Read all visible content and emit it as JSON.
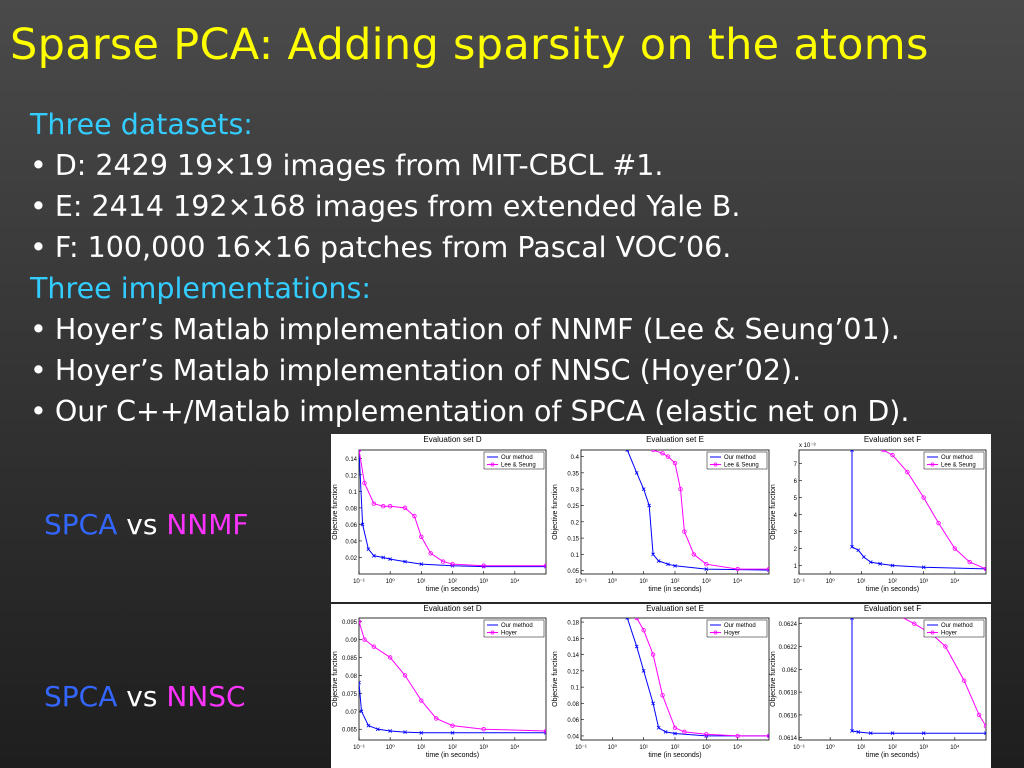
{
  "title": "Sparse PCA: Adding sparsity on the atoms",
  "sections": [
    {
      "heading": "Three datasets:",
      "items": [
        "D: 2429 19×19 images from MIT-CBCL #1.",
        "E: 2414 192×168 images from extended Yale B.",
        "F: 100,000 16×16 patches from Pascal VOC’06."
      ]
    },
    {
      "heading": "Three implementations:",
      "items": [
        "Hoyer’s Matlab implementation of NNMF (Lee & Seung’01).",
        "Hoyer’s Matlab implementation of NNSC (Hoyer’02).",
        "Our C++/Matlab implementation of SPCA (elastic net on D)."
      ]
    }
  ],
  "bullet": "•",
  "comparisons": [
    {
      "a": "SPCA",
      "vs": "vs",
      "b": "NNMF"
    },
    {
      "a": "SPCA",
      "vs": "vs",
      "b": "NNSC"
    }
  ],
  "colors": {
    "title": "#ffff00",
    "heading": "#33ccff",
    "spca": "#3366ff",
    "other": "#ff33ff",
    "series_ours": "#0000ff",
    "series_other": "#ff00ff"
  },
  "chart_data": [
    {
      "type": "line",
      "title": "Evaluation set D",
      "xlabel": "time (in seconds)",
      "ylabel": "Objective function",
      "xscale": "log",
      "xlim": [
        0.1,
        100000
      ],
      "ylim": [
        0,
        0.15
      ],
      "yticks": [
        "0.02",
        "0.04",
        "0.06",
        "0.08",
        "0.1",
        "0.12",
        "0.14"
      ],
      "ytick_values": [
        0.02,
        0.04,
        0.06,
        0.08,
        0.1,
        0.12,
        0.14
      ],
      "xticks": [
        "10⁻¹",
        "10⁰",
        "10¹",
        "10²",
        "10³",
        "10⁴"
      ],
      "legend": "top-right",
      "series": [
        {
          "name": "Our method",
          "x": [
            0.1,
            0.13,
            0.2,
            0.3,
            0.6,
            1,
            3,
            10,
            100,
            1000,
            100000
          ],
          "y": [
            0.15,
            0.06,
            0.03,
            0.022,
            0.02,
            0.018,
            0.015,
            0.012,
            0.01,
            0.009,
            0.009
          ]
        },
        {
          "name": "Lee & Seung",
          "x": [
            0.1,
            0.15,
            0.3,
            0.6,
            1,
            3,
            6,
            10,
            20,
            50,
            100,
            1000,
            100000
          ],
          "y": [
            0.15,
            0.11,
            0.085,
            0.082,
            0.082,
            0.08,
            0.07,
            0.045,
            0.025,
            0.015,
            0.012,
            0.01,
            0.01
          ]
        }
      ]
    },
    {
      "type": "line",
      "title": "Evaluation set E",
      "xlabel": "time (in seconds)",
      "ylabel": "Objective function",
      "xscale": "log",
      "xlim": [
        0.1,
        100000
      ],
      "ylim": [
        0.04,
        0.42
      ],
      "yticks": [
        "0.05",
        "0.1",
        "0.15",
        "0.2",
        "0.25",
        "0.3",
        "0.35",
        "0.4"
      ],
      "ytick_values": [
        0.05,
        0.1,
        0.15,
        0.2,
        0.25,
        0.3,
        0.35,
        0.4
      ],
      "xticks": [
        "10⁻¹",
        "10⁰",
        "10¹",
        "10²",
        "10³",
        "10⁴"
      ],
      "legend": "top-right",
      "series": [
        {
          "name": "Our method",
          "x": [
            3,
            6,
            10,
            15,
            20,
            30,
            60,
            100,
            1000,
            100000
          ],
          "y": [
            0.42,
            0.35,
            0.3,
            0.25,
            0.1,
            0.08,
            0.07,
            0.065,
            0.055,
            0.052
          ]
        },
        {
          "name": "Lee & Seung",
          "x": [
            20,
            40,
            60,
            100,
            150,
            200,
            400,
            1000,
            10000,
            100000
          ],
          "y": [
            0.42,
            0.41,
            0.4,
            0.38,
            0.3,
            0.17,
            0.1,
            0.07,
            0.055,
            0.055
          ]
        }
      ]
    },
    {
      "type": "line",
      "title": "Evaluation set F",
      "xlabel": "time (in seconds)",
      "ylabel": "Objective function",
      "exponent": "x 10⁻³",
      "xscale": "log",
      "xlim": [
        0.1,
        100000
      ],
      "ylim": [
        0.0005,
        0.0078
      ],
      "yticks": [
        "1",
        "2",
        "3",
        "4",
        "5",
        "6",
        "7"
      ],
      "ytick_values": [
        0.001,
        0.002,
        0.003,
        0.004,
        0.005,
        0.006,
        0.007
      ],
      "xticks": [
        "10⁻¹",
        "10⁰",
        "10¹",
        "10²",
        "10³",
        "10⁴"
      ],
      "legend": "top-right",
      "series": [
        {
          "name": "Our method",
          "x": [
            5,
            5,
            8,
            12,
            20,
            40,
            100,
            1000,
            100000
          ],
          "y": [
            0.0078,
            0.0021,
            0.0019,
            0.0015,
            0.0012,
            0.0011,
            0.001,
            0.0009,
            0.0008
          ]
        },
        {
          "name": "Lee & Seung",
          "x": [
            50,
            100,
            300,
            1000,
            3000,
            10000,
            30000,
            100000
          ],
          "y": [
            0.0078,
            0.0075,
            0.0065,
            0.005,
            0.0035,
            0.002,
            0.0012,
            0.0008
          ]
        }
      ]
    },
    {
      "type": "line",
      "title": "Evaluation set D",
      "xlabel": "time (in seconds)",
      "ylabel": "Objective function",
      "xscale": "log",
      "xlim": [
        0.1,
        100000
      ],
      "ylim": [
        0.062,
        0.096
      ],
      "yticks": [
        "0.065",
        "0.07",
        "0.075",
        "0.08",
        "0.085",
        "0.09",
        "0.095"
      ],
      "ytick_values": [
        0.065,
        0.07,
        0.075,
        0.08,
        0.085,
        0.09,
        0.095
      ],
      "xticks": [
        "10⁻¹",
        "10⁰",
        "10¹",
        "10²",
        "10³",
        "10⁴"
      ],
      "legend": "top-right",
      "series": [
        {
          "name": "Our method",
          "x": [
            0.1,
            0.12,
            0.2,
            0.4,
            1,
            3,
            10,
            100,
            100000
          ],
          "y": [
            0.078,
            0.07,
            0.066,
            0.065,
            0.0645,
            0.0642,
            0.064,
            0.064,
            0.064
          ]
        },
        {
          "name": "Hoyer",
          "x": [
            0.1,
            0.15,
            0.3,
            1,
            3,
            10,
            30,
            100,
            1000,
            100000
          ],
          "y": [
            0.095,
            0.09,
            0.088,
            0.085,
            0.08,
            0.073,
            0.068,
            0.066,
            0.065,
            0.0645
          ]
        }
      ]
    },
    {
      "type": "line",
      "title": "Evaluation set E",
      "xlabel": "time (in seconds)",
      "ylabel": "Objective function",
      "xscale": "log",
      "xlim": [
        0.1,
        100000
      ],
      "ylim": [
        0.035,
        0.185
      ],
      "yticks": [
        "0.04",
        "0.06",
        "0.08",
        "0.1",
        "0.12",
        "0.14",
        "0.16",
        "0.18"
      ],
      "ytick_values": [
        0.04,
        0.06,
        0.08,
        0.1,
        0.12,
        0.14,
        0.16,
        0.18
      ],
      "xticks": [
        "10⁻¹",
        "10⁰",
        "10¹",
        "10²",
        "10³",
        "10⁴"
      ],
      "legend": "top-right",
      "series": [
        {
          "name": "Our method",
          "x": [
            3,
            6,
            10,
            20,
            30,
            50,
            100,
            1000,
            100000
          ],
          "y": [
            0.185,
            0.15,
            0.12,
            0.08,
            0.05,
            0.045,
            0.043,
            0.04,
            0.04
          ]
        },
        {
          "name": "Hoyer",
          "x": [
            6,
            10,
            20,
            40,
            100,
            200,
            1000,
            10000,
            100000
          ],
          "y": [
            0.185,
            0.17,
            0.14,
            0.09,
            0.05,
            0.045,
            0.042,
            0.04,
            0.04
          ]
        }
      ]
    },
    {
      "type": "line",
      "title": "Evaluation set F",
      "xlabel": "time (in seconds)",
      "ylabel": "Objective function",
      "xscale": "log",
      "xlim": [
        0.1,
        100000
      ],
      "ylim": [
        0.06138,
        0.06245
      ],
      "yticks": [
        "0.0614",
        "0.0616",
        "0.0618",
        "0.062",
        "0.0622",
        "0.0624"
      ],
      "ytick_values": [
        0.0614,
        0.0616,
        0.0618,
        0.062,
        0.0622,
        0.0624
      ],
      "xticks": [
        "10⁻¹",
        "10⁰",
        "10¹",
        "10²",
        "10³",
        "10⁴"
      ],
      "legend": "top-right",
      "series": [
        {
          "name": "Our method",
          "x": [
            5,
            5,
            8,
            20,
            100,
            1000,
            100000
          ],
          "y": [
            0.06245,
            0.06146,
            0.06145,
            0.06144,
            0.06144,
            0.06144,
            0.06144
          ]
        },
        {
          "name": "Hoyer",
          "x": [
            20,
            100,
            500,
            2000,
            5000,
            20000,
            60000,
            100000
          ],
          "y": [
            0.0625,
            0.0625,
            0.0624,
            0.0623,
            0.0622,
            0.0619,
            0.0616,
            0.0615
          ]
        }
      ]
    }
  ]
}
